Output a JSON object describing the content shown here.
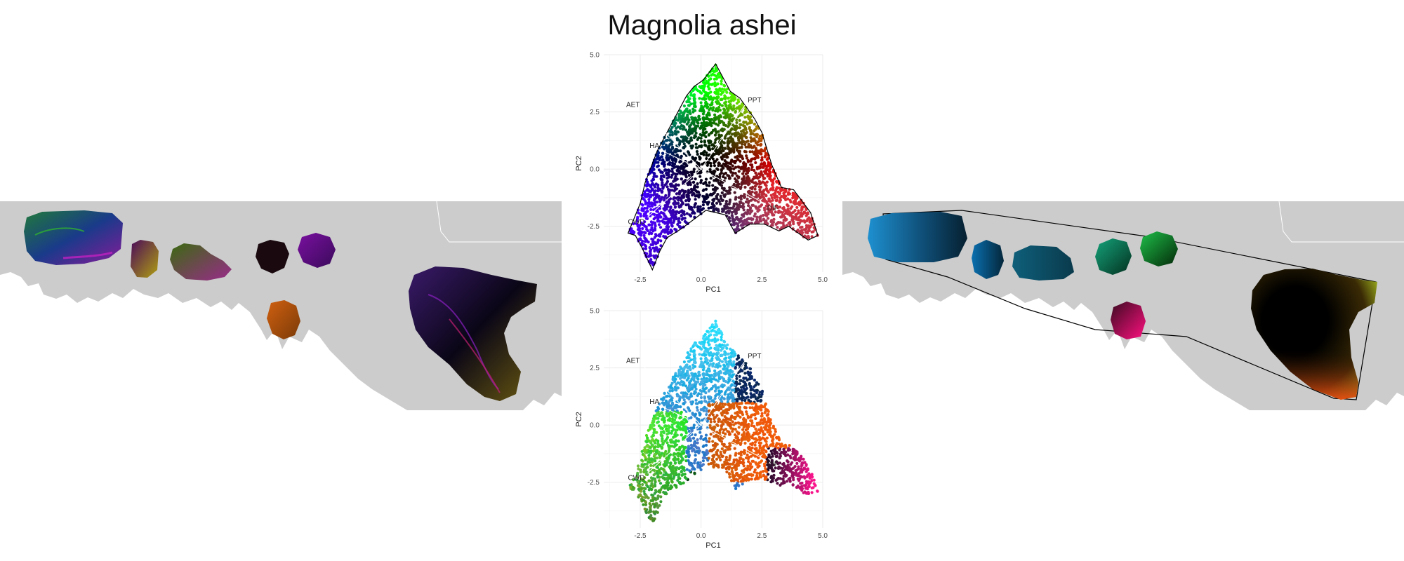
{
  "title": "Magnolia ashei",
  "chart_data": [
    {
      "type": "scatter",
      "panel": "top",
      "xlabel": "PC1",
      "ylabel": "PC2",
      "xlim": [
        -4.0,
        5.0
      ],
      "ylim": [
        -4.5,
        5.0
      ],
      "xticks": [
        -2.5,
        0.0,
        2.5,
        5.0
      ],
      "yticks": [
        -2.5,
        0.0,
        2.5,
        5.0
      ],
      "tick_labels_x": [
        "-2.5",
        "0.0",
        "2.5",
        "5.0"
      ],
      "tick_labels_y": [
        "-2.5",
        "0.0",
        "2.5",
        "5.0"
      ],
      "grid": true,
      "point_coloring": "position-based RGB (dark core, purple left-bottom, green top, orange right)",
      "hull": true,
      "vectors": [
        {
          "label": "AET",
          "x": -2.4,
          "y": 2.6
        },
        {
          "label": "PPT",
          "x": 1.8,
          "y": 2.8
        },
        {
          "label": "HA",
          "x": -1.6,
          "y": 0.8
        },
        {
          "label": "CWD",
          "x": -2.2,
          "y": -2.1
        },
        {
          "label": "DIF",
          "x": 2.6,
          "y": -1.5
        }
      ]
    },
    {
      "type": "scatter",
      "panel": "bottom",
      "xlabel": "PC1",
      "ylabel": "PC2",
      "xlim": [
        -4.0,
        5.0
      ],
      "ylim": [
        -4.5,
        5.0
      ],
      "xticks": [
        -2.5,
        0.0,
        2.5,
        5.0
      ],
      "yticks": [
        -2.5,
        0.0,
        2.5,
        5.0
      ],
      "tick_labels_x": [
        "-2.5",
        "0.0",
        "2.5",
        "5.0"
      ],
      "tick_labels_y": [
        "-2.5",
        "0.0",
        "2.5",
        "5.0"
      ],
      "grid": true,
      "point_coloring": "population-based (blue top, green left, orange center-right, magenta far right)",
      "hull": false,
      "vectors": [
        {
          "label": "AET",
          "x": -2.4,
          "y": 2.6
        },
        {
          "label": "PPT",
          "x": 1.8,
          "y": 2.8
        },
        {
          "label": "HA",
          "x": -1.6,
          "y": 0.8
        },
        {
          "label": "CWD",
          "x": -2.2,
          "y": -2.1
        },
        {
          "label": "DIF",
          "x": 2.6,
          "y": -1.5
        }
      ]
    }
  ],
  "colors": {
    "land": "#cccccc",
    "water": "#ffffff",
    "grid": "#ebebeb",
    "vector": "#ffffff",
    "hull": "#000000"
  }
}
